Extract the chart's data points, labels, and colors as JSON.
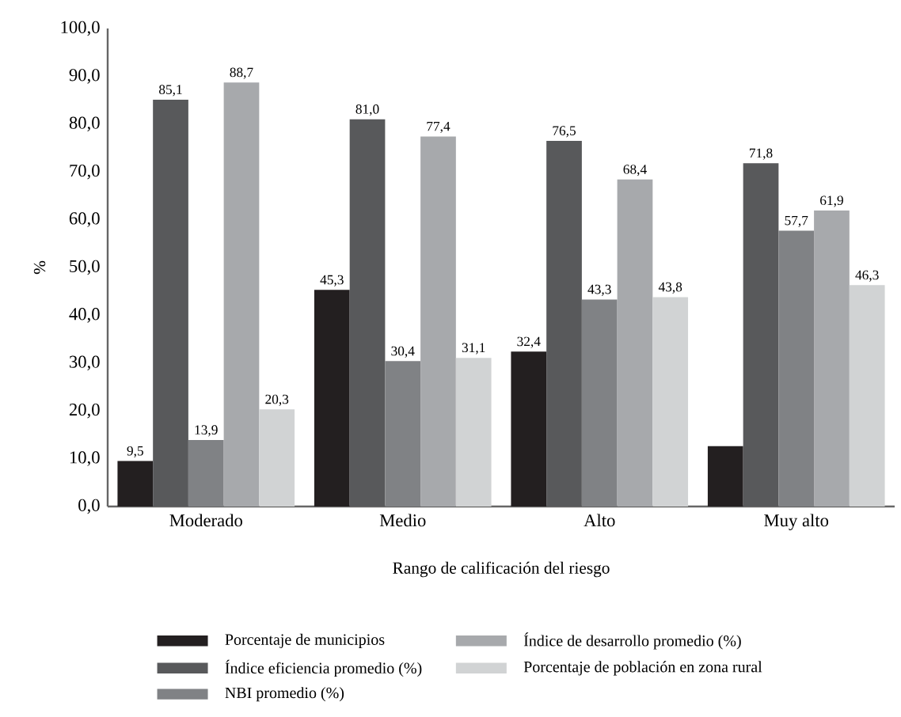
{
  "chart_data": {
    "type": "bar",
    "xlabel": "Rango de calificación del riesgo",
    "ylabel": "%",
    "categories": [
      "Moderado",
      "Medio",
      "Alto",
      "Muy alto"
    ],
    "series": [
      {
        "name": "Porcentaje de municipios",
        "color": "#231f20",
        "values": [
          9.5,
          45.3,
          32.4,
          12.6
        ],
        "value_labels": [
          "9,5",
          "45,3",
          "32,4",
          null
        ]
      },
      {
        "name": "Índice eficiencia promedio (%)",
        "color": "#58595b",
        "values": [
          85.1,
          81.0,
          76.5,
          71.8
        ],
        "value_labels": [
          "85,1",
          "81,0",
          "76,5",
          "71,8"
        ]
      },
      {
        "name": "NBI promedio (%)",
        "color": "#808285",
        "values": [
          13.9,
          30.4,
          43.3,
          57.7
        ],
        "value_labels": [
          "13,9",
          "30,4",
          "43,3",
          "57,7"
        ]
      },
      {
        "name": "Índice de desarrollo promedio (%)",
        "color": "#a7a9ac",
        "values": [
          88.7,
          77.4,
          68.4,
          61.9
        ],
        "value_labels": [
          "88,7",
          "77,4",
          "68,4",
          "61,9"
        ]
      },
      {
        "name": "Porcentaje de población en zona rural",
        "color": "#d1d3d4",
        "values": [
          20.3,
          31.1,
          43.8,
          46.3
        ],
        "value_labels": [
          "20,3",
          "31,1",
          "43,8",
          "46,3"
        ]
      }
    ],
    "ylim": [
      0,
      100
    ],
    "yticks": [
      {
        "value": 0,
        "label": "0,0"
      },
      {
        "value": 10,
        "label": "10,0"
      },
      {
        "value": 20,
        "label": "20,0"
      },
      {
        "value": 30,
        "label": "30,0"
      },
      {
        "value": 40,
        "label": "40,0"
      },
      {
        "value": 50,
        "label": "50,0"
      },
      {
        "value": 60,
        "label": "60,0"
      },
      {
        "value": 70,
        "label": "70,0"
      },
      {
        "value": 80,
        "label": "80,0"
      },
      {
        "value": 90,
        "label": "90,0"
      },
      {
        "value": 100,
        "label": "100,0"
      }
    ],
    "legend": "bottom"
  }
}
